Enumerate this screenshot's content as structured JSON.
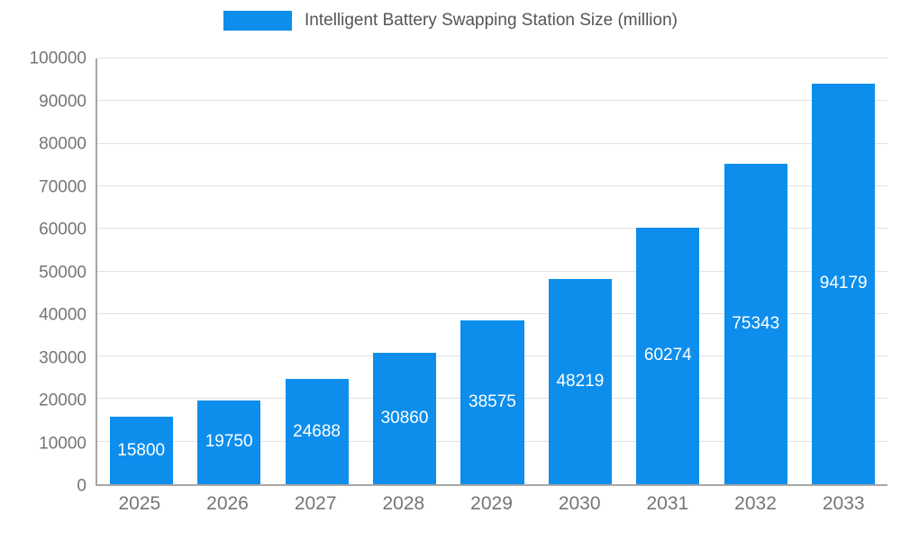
{
  "chart_data": {
    "type": "bar",
    "title": "Intelligent Battery Swapping Station Size (million)",
    "categories": [
      "2025",
      "2026",
      "2027",
      "2028",
      "2029",
      "2030",
      "2031",
      "2032",
      "2033"
    ],
    "values": [
      15800,
      19750,
      24688,
      30860,
      38575,
      48219,
      60274,
      75343,
      94179
    ],
    "ylim": [
      0,
      100000
    ],
    "yticks": [
      0,
      10000,
      20000,
      30000,
      40000,
      50000,
      60000,
      70000,
      80000,
      90000,
      100000
    ],
    "grid": true,
    "legend_position": "top",
    "bar_color": "#0d8eec",
    "bar_label_color": "#ffffff",
    "axis_text_color": "#757575",
    "title_color": "#555555",
    "gridline_color": "#e2e2e2"
  }
}
